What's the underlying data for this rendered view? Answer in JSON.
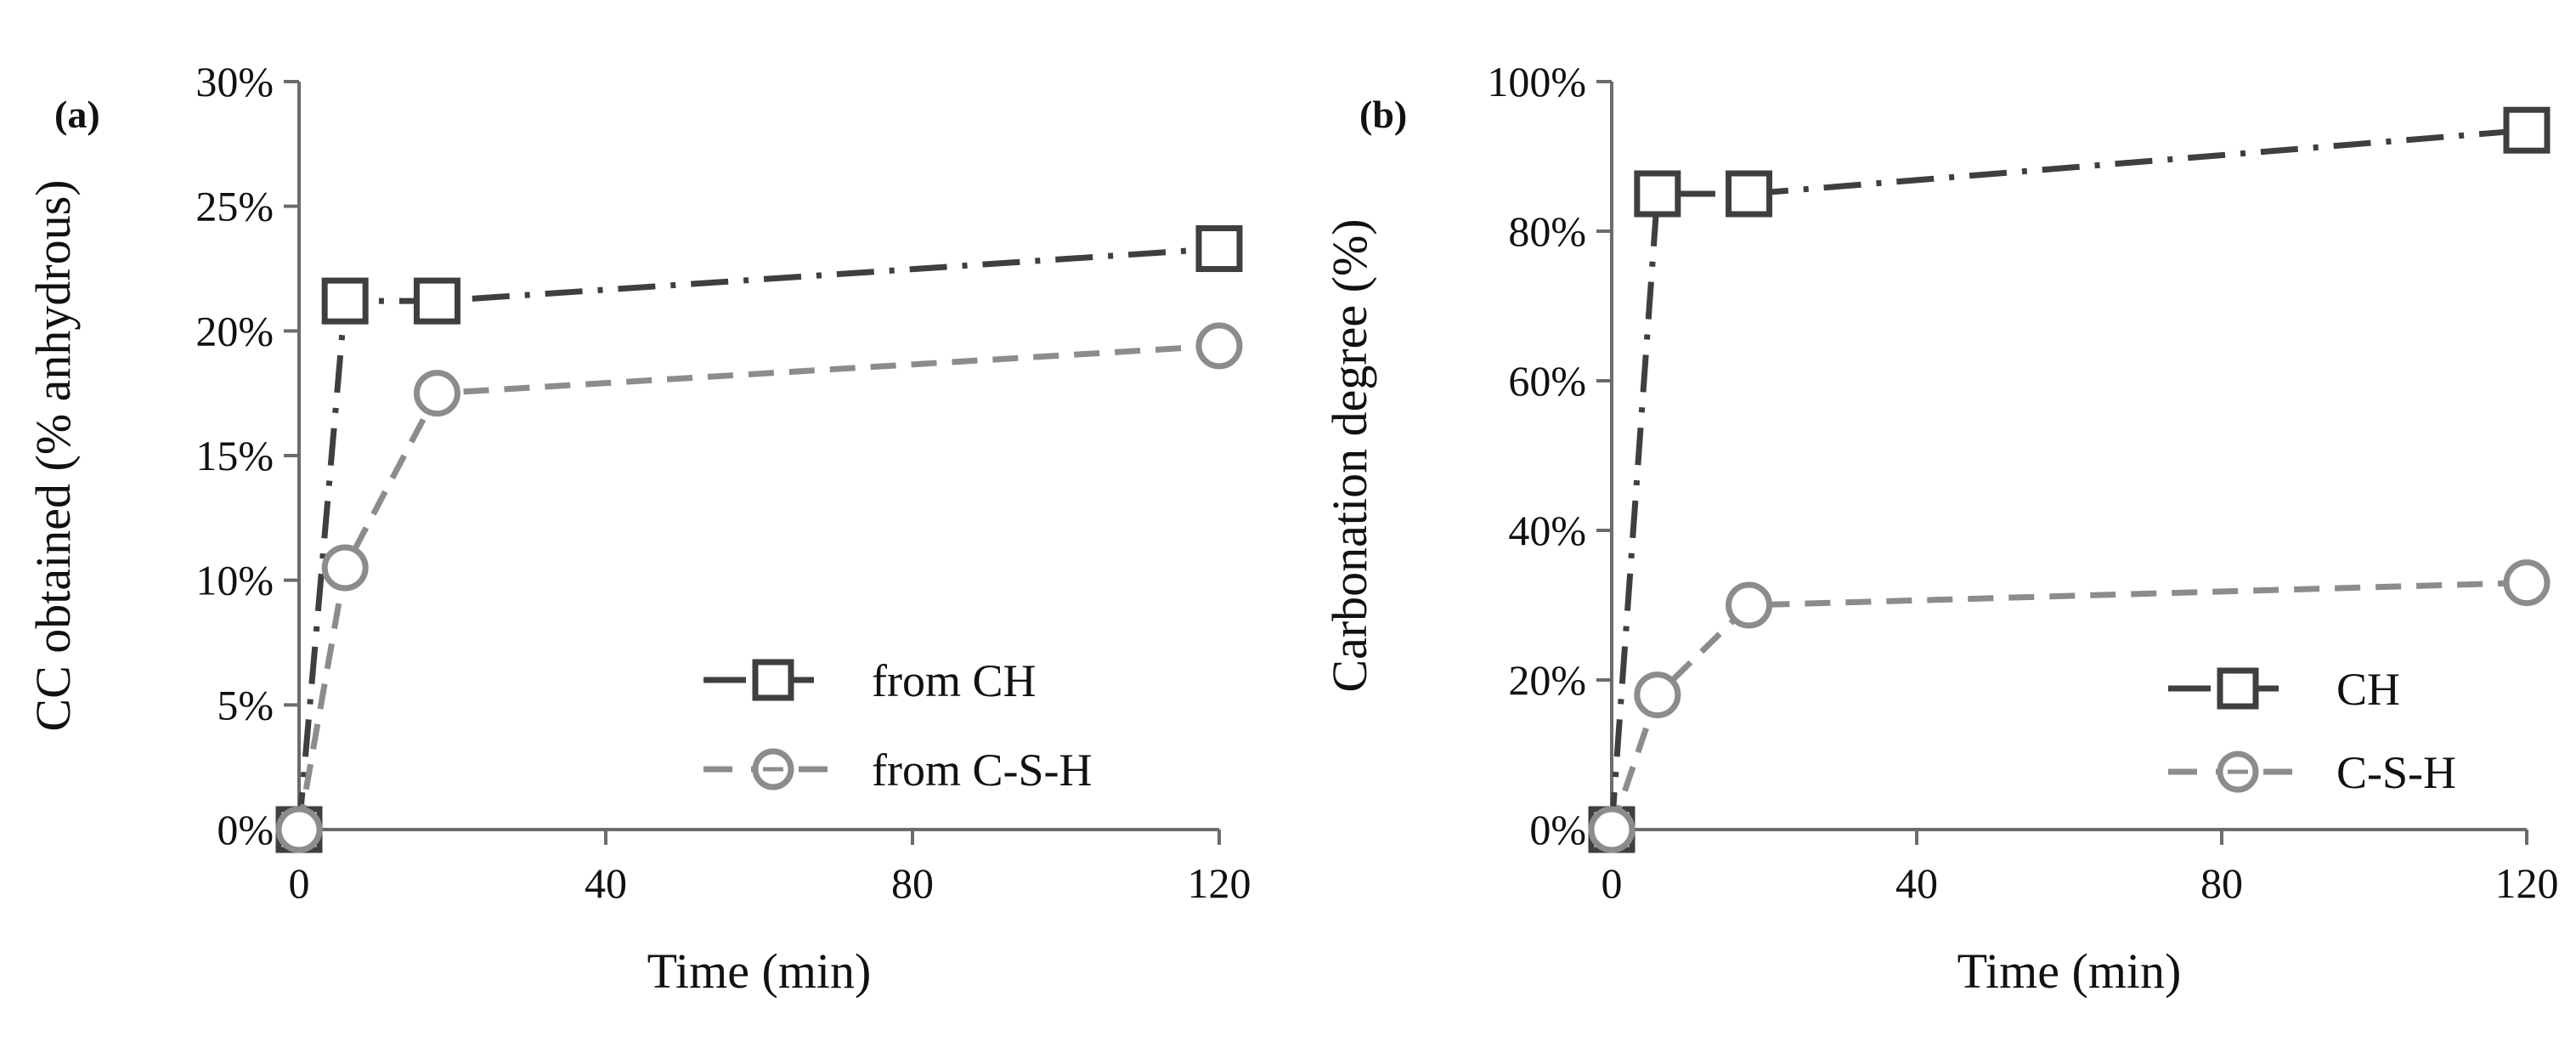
{
  "chart_data": [
    {
      "type": "line",
      "panel_label": "(a)",
      "xlabel": "Time (min)",
      "ylabel": "CC obtained (% anhydrous)",
      "xlim": [
        0,
        120
      ],
      "ylim": [
        0,
        30
      ],
      "x_ticks": [
        "0",
        "40",
        "80",
        "120"
      ],
      "x_tick_values": [
        0,
        40,
        80,
        120
      ],
      "y_ticks": [
        "0%",
        "5%",
        "10%",
        "15%",
        "20%",
        "25%",
        "30%"
      ],
      "y_tick_values": [
        0,
        5,
        10,
        15,
        20,
        25,
        30
      ],
      "legend_position": "lower-right",
      "grid": false,
      "series": [
        {
          "name": "from CH",
          "marker": "square",
          "dash": "dash-dot",
          "color": "#3f3f3f",
          "x": [
            0,
            6,
            18,
            120
          ],
          "y": [
            0,
            21.2,
            21.2,
            23.3
          ]
        },
        {
          "name": "from C-S-H",
          "marker": "circle",
          "dash": "dash",
          "color": "#8c8c8c",
          "x": [
            0,
            6,
            18,
            120
          ],
          "y": [
            0,
            10.5,
            17.5,
            19.4
          ]
        }
      ]
    },
    {
      "type": "line",
      "panel_label": "(b)",
      "xlabel": "Time (min)",
      "ylabel": "Carbonation degree (%)",
      "xlim": [
        0,
        120
      ],
      "ylim": [
        0,
        100
      ],
      "x_ticks": [
        "0",
        "40",
        "80",
        "120"
      ],
      "x_tick_values": [
        0,
        40,
        80,
        120
      ],
      "y_ticks": [
        "0%",
        "20%",
        "40%",
        "60%",
        "80%",
        "100%"
      ],
      "y_tick_values": [
        0,
        20,
        40,
        60,
        80,
        100
      ],
      "legend_position": "lower-right",
      "grid": false,
      "series": [
        {
          "name": "CH",
          "marker": "square",
          "dash": "dash-dot",
          "color": "#3f3f3f",
          "x": [
            0,
            6,
            18,
            120
          ],
          "y": [
            0,
            85,
            85,
            93.5
          ]
        },
        {
          "name": "C-S-H",
          "marker": "circle",
          "dash": "dash",
          "color": "#8c8c8c",
          "x": [
            0,
            6,
            18,
            120
          ],
          "y": [
            0,
            18,
            30,
            33
          ]
        }
      ]
    }
  ]
}
